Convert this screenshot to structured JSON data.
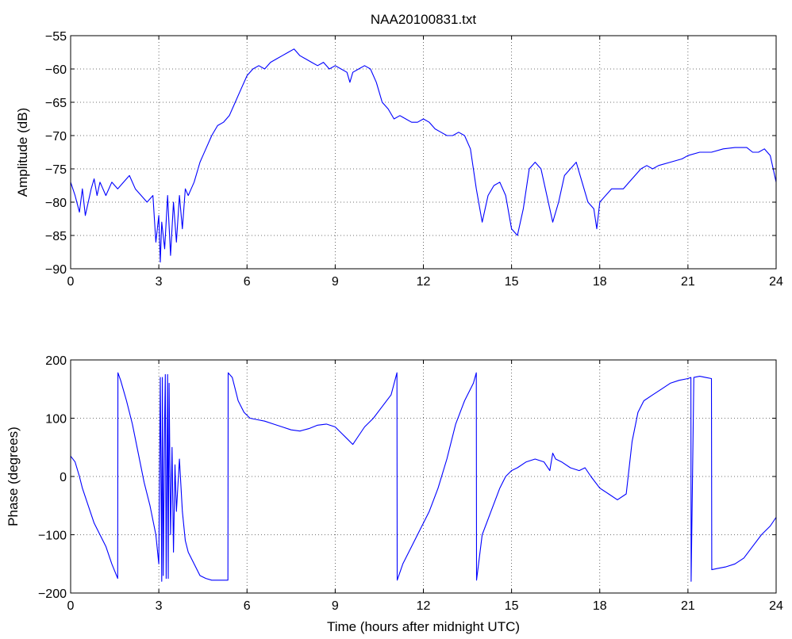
{
  "chart_data": [
    {
      "type": "line",
      "title": "NAA20100831.txt",
      "xlabel": "",
      "ylabel": "Amplitude (dB)",
      "xlim": [
        0,
        24
      ],
      "ylim": [
        -90,
        -55
      ],
      "xticks": [
        0,
        3,
        6,
        9,
        12,
        15,
        18,
        21,
        24
      ],
      "yticks": [
        -90,
        -85,
        -80,
        -75,
        -70,
        -65,
        -60,
        -55
      ],
      "grid": true,
      "series": [
        {
          "color": "#0000ff",
          "x": [
            0,
            0.15,
            0.3,
            0.4,
            0.5,
            0.6,
            0.7,
            0.8,
            0.9,
            1.0,
            1.2,
            1.4,
            1.6,
            1.8,
            2.0,
            2.2,
            2.4,
            2.6,
            2.8,
            2.9,
            3.0,
            3.05,
            3.1,
            3.2,
            3.3,
            3.4,
            3.5,
            3.6,
            3.7,
            3.8,
            3.9,
            4.0,
            4.1,
            4.2,
            4.4,
            4.6,
            4.8,
            5.0,
            5.2,
            5.4,
            5.6,
            5.8,
            6.0,
            6.2,
            6.4,
            6.6,
            6.8,
            7.0,
            7.2,
            7.4,
            7.6,
            7.8,
            8.0,
            8.2,
            8.4,
            8.6,
            8.8,
            9.0,
            9.2,
            9.4,
            9.5,
            9.6,
            9.8,
            10.0,
            10.2,
            10.4,
            10.6,
            10.8,
            11.0,
            11.2,
            11.4,
            11.6,
            11.8,
            12.0,
            12.2,
            12.4,
            12.6,
            12.8,
            13.0,
            13.2,
            13.4,
            13.6,
            13.8,
            14.0,
            14.2,
            14.4,
            14.6,
            14.8,
            15.0,
            15.2,
            15.4,
            15.6,
            15.8,
            16.0,
            16.2,
            16.4,
            16.6,
            16.8,
            17.0,
            17.2,
            17.4,
            17.6,
            17.8,
            17.9,
            18.0,
            18.4,
            18.8,
            19.0,
            19.2,
            19.4,
            19.6,
            19.8,
            20.0,
            20.4,
            20.8,
            21.0,
            21.4,
            21.8,
            22.2,
            22.6,
            23.0,
            23.2,
            23.4,
            23.6,
            23.8,
            24.0
          ],
          "values": [
            -77,
            -79,
            -81.5,
            -78,
            -82,
            -80,
            -78,
            -76.5,
            -79,
            -77,
            -79,
            -77,
            -78,
            -77,
            -76,
            -78,
            -79,
            -80,
            -79,
            -86,
            -82,
            -89,
            -83,
            -87,
            -79,
            -88,
            -80,
            -86,
            -79,
            -84,
            -78,
            -79,
            -78,
            -77,
            -74,
            -72,
            -70,
            -68.5,
            -68,
            -67,
            -65,
            -63,
            -61,
            -60,
            -59.5,
            -60,
            -59,
            -58.5,
            -58,
            -57.5,
            -57,
            -58,
            -58.5,
            -59,
            -59.5,
            -59,
            -60,
            -59.5,
            -60,
            -60.5,
            -62,
            -60.5,
            -60,
            -59.5,
            -60,
            -62,
            -65,
            -66,
            -67.5,
            -67,
            -67.5,
            -68,
            -68,
            -67.5,
            -68,
            -69,
            -69.5,
            -70,
            -70,
            -69.5,
            -70,
            -72,
            -78,
            -83,
            -79,
            -77.5,
            -77,
            -79,
            -84,
            -85,
            -81,
            -75,
            -74,
            -75,
            -79,
            -83,
            -80,
            -76,
            -75,
            -74,
            -77,
            -80,
            -81,
            -84,
            -80,
            -78,
            -78,
            -77,
            -76,
            -75,
            -74.5,
            -75,
            -74.5,
            -74,
            -73.5,
            -73,
            -72.5,
            -72.5,
            -72,
            -71.8,
            -71.8,
            -72.5,
            -72.5,
            -72,
            -73,
            -77
          ]
        }
      ]
    },
    {
      "type": "line",
      "title": "",
      "xlabel": "Time (hours after midnight UTC)",
      "ylabel": "Phase (degrees)",
      "xlim": [
        0,
        24
      ],
      "ylim": [
        -200,
        200
      ],
      "xticks": [
        0,
        3,
        6,
        9,
        12,
        15,
        18,
        21,
        24
      ],
      "yticks": [
        -200,
        -100,
        0,
        100,
        200
      ],
      "grid": true,
      "series": [
        {
          "color": "#0000ff",
          "x": [
            0,
            0.15,
            0.3,
            0.4,
            0.6,
            0.8,
            1.0,
            1.2,
            1.4,
            1.6,
            1.61,
            1.7,
            1.9,
            2.1,
            2.3,
            2.5,
            2.7,
            2.9,
            3.0,
            3.05,
            3.1,
            3.12,
            3.15,
            3.2,
            3.22,
            3.25,
            3.3,
            3.32,
            3.35,
            3.4,
            3.45,
            3.5,
            3.55,
            3.6,
            3.7,
            3.8,
            3.9,
            4.0,
            4.2,
            4.4,
            4.6,
            4.8,
            5.0,
            5.2,
            5.35,
            5.36,
            5.5,
            5.7,
            5.9,
            6.1,
            6.3,
            6.6,
            6.9,
            7.2,
            7.5,
            7.8,
            8.1,
            8.4,
            8.7,
            9.0,
            9.2,
            9.4,
            9.6,
            9.8,
            10.0,
            10.3,
            10.6,
            10.9,
            11.1,
            11.11,
            11.3,
            11.6,
            11.9,
            12.2,
            12.5,
            12.8,
            13.1,
            13.4,
            13.7,
            13.8,
            13.81,
            14.0,
            14.3,
            14.6,
            14.8,
            15.0,
            15.2,
            15.5,
            15.8,
            16.1,
            16.3,
            16.4,
            16.5,
            16.7,
            17.0,
            17.3,
            17.5,
            17.7,
            18.0,
            18.3,
            18.6,
            18.9,
            19.1,
            19.3,
            19.5,
            19.8,
            20.1,
            20.4,
            20.7,
            21.0,
            21.1,
            21.11,
            21.2,
            21.4,
            21.6,
            21.8,
            21.81,
            22.0,
            22.3,
            22.6,
            22.9,
            23.2,
            23.5,
            23.8,
            24.0
          ],
          "values": [
            35,
            25,
            0,
            -20,
            -50,
            -80,
            -100,
            -120,
            -150,
            -175,
            178,
            165,
            130,
            90,
            40,
            -10,
            -50,
            -100,
            -150,
            170,
            -180,
            170,
            -170,
            100,
            175,
            -175,
            175,
            -175,
            160,
            -100,
            50,
            -130,
            20,
            -60,
            30,
            -60,
            -110,
            -130,
            -150,
            -170,
            -175,
            -178,
            -178,
            -178,
            -178,
            178,
            170,
            130,
            110,
            100,
            98,
            95,
            90,
            85,
            80,
            78,
            82,
            88,
            90,
            85,
            75,
            65,
            55,
            70,
            85,
            100,
            120,
            140,
            178,
            -178,
            -150,
            -120,
            -90,
            -60,
            -20,
            30,
            90,
            130,
            160,
            178,
            -178,
            -100,
            -60,
            -20,
            0,
            10,
            15,
            25,
            30,
            25,
            10,
            40,
            30,
            25,
            15,
            10,
            15,
            0,
            -20,
            -30,
            -40,
            -30,
            60,
            110,
            130,
            140,
            150,
            160,
            165,
            168,
            170,
            -180,
            170,
            172,
            170,
            168,
            -160,
            -158,
            -155,
            -150,
            -140,
            -120,
            -100,
            -85,
            -70
          ]
        }
      ]
    }
  ]
}
